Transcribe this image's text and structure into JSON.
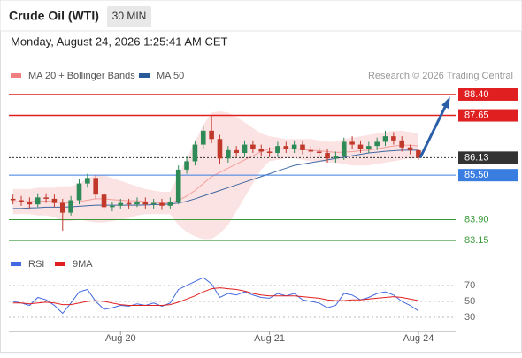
{
  "header": {
    "title": "Crude Oil (WTI)",
    "interval": "30 MIN",
    "timestamp": "Monday, August 24, 2026 1:25:41 AM CET"
  },
  "chart_data": [
    {
      "type": "candlestick",
      "watermark": "Research © 2026 Trading Central",
      "ylim": [
        82.74,
        88.78
      ],
      "candle_colors": {
        "up": "#2e8b57",
        "down": "#c0392b"
      },
      "open": [
        84.65,
        84.6,
        84.55,
        84.45,
        84.7,
        84.65,
        84.5,
        84.15,
        84.6,
        85.2,
        85.4,
        84.8,
        84.35,
        84.4,
        84.5,
        84.45,
        84.55,
        84.45,
        84.5,
        84.4,
        84.55,
        85.7,
        86.0,
        86.6,
        87.1,
        86.8,
        86.1,
        86.4,
        86.3,
        86.6,
        86.45,
        86.35,
        86.3,
        86.55,
        86.45,
        86.6,
        86.4,
        86.35,
        86.3,
        86.1,
        86.2,
        86.7,
        86.6,
        86.45,
        86.55,
        86.7,
        86.9,
        86.75,
        86.5,
        86.4
      ],
      "high": [
        84.8,
        84.75,
        84.7,
        84.85,
        84.85,
        84.8,
        84.65,
        84.75,
        85.35,
        85.55,
        85.5,
        84.95,
        84.55,
        84.65,
        84.65,
        84.7,
        84.7,
        84.65,
        84.65,
        84.7,
        85.85,
        86.2,
        86.75,
        87.25,
        87.65,
        86.95,
        86.55,
        86.55,
        86.75,
        86.75,
        86.6,
        86.5,
        86.7,
        86.7,
        86.75,
        86.75,
        86.55,
        86.5,
        86.45,
        86.35,
        86.85,
        86.9,
        86.75,
        86.7,
        86.85,
        87.1,
        87.05,
        86.9,
        86.6,
        86.45
      ],
      "low": [
        84.45,
        84.4,
        84.3,
        84.35,
        84.5,
        84.35,
        83.5,
        84.05,
        84.45,
        85.05,
        84.65,
        84.2,
        84.2,
        84.3,
        84.3,
        84.35,
        84.3,
        84.3,
        84.25,
        84.3,
        84.45,
        85.55,
        85.85,
        86.45,
        86.65,
        85.9,
        85.95,
        86.15,
        86.15,
        86.3,
        86.2,
        86.15,
        86.15,
        86.3,
        86.3,
        86.25,
        86.2,
        86.15,
        85.95,
        85.95,
        86.05,
        86.45,
        86.3,
        86.3,
        86.4,
        86.55,
        86.6,
        86.35,
        86.25,
        86.05
      ],
      "close": [
        84.6,
        84.55,
        84.45,
        84.7,
        84.65,
        84.5,
        84.15,
        84.6,
        85.2,
        85.4,
        84.8,
        84.35,
        84.4,
        84.5,
        84.45,
        84.55,
        84.45,
        84.5,
        84.4,
        84.55,
        85.7,
        86.0,
        86.6,
        87.1,
        86.8,
        86.1,
        86.4,
        86.3,
        86.6,
        86.45,
        86.35,
        86.3,
        86.55,
        86.45,
        86.6,
        86.4,
        86.35,
        86.3,
        86.1,
        86.2,
        86.7,
        86.6,
        86.45,
        86.55,
        86.7,
        86.9,
        86.75,
        86.5,
        86.4,
        86.13
      ],
      "series": [
        {
          "name": "MA 20 + Bollinger Bands",
          "color": "#f08080",
          "values": [
            84.55,
            84.55,
            84.55,
            84.56,
            84.57,
            84.55,
            84.5,
            84.5,
            84.55,
            84.6,
            84.65,
            84.65,
            84.62,
            84.6,
            84.58,
            84.58,
            84.55,
            84.52,
            84.5,
            84.5,
            84.6,
            84.75,
            84.95,
            85.2,
            85.45,
            85.6,
            85.75,
            85.9,
            86.05,
            86.2,
            86.35,
            86.45,
            86.45,
            86.45,
            86.45,
            86.42,
            86.4,
            86.38,
            86.35,
            86.32,
            86.33,
            86.35,
            86.38,
            86.4,
            86.45,
            86.5,
            86.55,
            86.58,
            86.58,
            86.55
          ],
          "upper": [
            85.0,
            85.0,
            85.0,
            85.05,
            85.05,
            85.05,
            85.1,
            85.1,
            85.2,
            85.4,
            85.5,
            85.5,
            85.4,
            85.3,
            85.2,
            85.1,
            85.0,
            84.95,
            84.9,
            84.9,
            85.5,
            86.1,
            86.7,
            87.3,
            87.75,
            87.8,
            87.75,
            87.6,
            87.4,
            87.2,
            87.0,
            86.9,
            86.85,
            86.8,
            86.8,
            86.8,
            86.8,
            86.75,
            86.7,
            86.7,
            86.8,
            86.85,
            86.9,
            86.95,
            87.0,
            87.05,
            87.1,
            87.1,
            87.05,
            87.0
          ],
          "lower": [
            84.1,
            84.1,
            84.1,
            84.05,
            84.05,
            84.0,
            83.85,
            83.85,
            83.9,
            83.85,
            83.8,
            83.8,
            83.85,
            83.9,
            83.95,
            84.05,
            84.1,
            84.1,
            84.1,
            84.1,
            83.7,
            83.45,
            83.3,
            83.2,
            83.2,
            83.4,
            83.7,
            84.2,
            84.7,
            85.2,
            85.7,
            86.0,
            86.05,
            86.1,
            86.1,
            86.05,
            86.0,
            86.0,
            85.95,
            85.95,
            85.9,
            85.85,
            85.85,
            85.85,
            85.9,
            85.95,
            86.0,
            86.05,
            86.1,
            86.1
          ]
        },
        {
          "name": "MA 50",
          "color": "#2a5a9a",
          "values": [
            84.3,
            84.3,
            84.32,
            84.33,
            84.35,
            84.35,
            84.35,
            84.36,
            84.38,
            84.4,
            84.42,
            84.42,
            84.42,
            84.42,
            84.42,
            84.42,
            84.43,
            84.44,
            84.45,
            84.46,
            84.5,
            84.56,
            84.65,
            84.75,
            84.85,
            84.95,
            85.05,
            85.15,
            85.25,
            85.35,
            85.45,
            85.55,
            85.65,
            85.75,
            85.85,
            85.9,
            85.95,
            86.0,
            86.05,
            86.1,
            86.15,
            86.2,
            86.25,
            86.3,
            86.33,
            86.36,
            86.38,
            86.4,
            86.4,
            86.4
          ]
        }
      ],
      "levels": [
        {
          "value": 88.4,
          "label": "88.40"
        },
        {
          "value": 87.65,
          "label": "87.65"
        },
        {
          "value": 86.13,
          "label": "86.13"
        },
        {
          "value": 85.5,
          "label": "85.50"
        },
        {
          "value": 83.9,
          "label": "83.90"
        },
        {
          "value": 83.15,
          "label": "83.15"
        }
      ],
      "level_colors": [
        "#e02020",
        "#e02020",
        "#333333",
        "#3a7de0",
        "#3a9a3a",
        "#3a9a3a"
      ],
      "level_dotted": [
        false,
        false,
        true,
        false,
        false,
        false
      ],
      "level_boxed": [
        true,
        true,
        true,
        true,
        false,
        false
      ]
    },
    {
      "type": "line",
      "ylim": [
        15.6,
        84.4
      ],
      "yticks": [
        30,
        50,
        70
      ],
      "categories": [
        null,
        null,
        null,
        null,
        null,
        null,
        null,
        null,
        null,
        null,
        null,
        null,
        null,
        "Aug 20",
        null,
        null,
        null,
        null,
        null,
        null,
        null,
        null,
        null,
        null,
        null,
        null,
        null,
        null,
        null,
        null,
        null,
        "Aug 21",
        null,
        null,
        null,
        null,
        null,
        null,
        null,
        null,
        null,
        null,
        null,
        null,
        null,
        null,
        null,
        null,
        null,
        "Aug 24"
      ],
      "series": [
        {
          "name": "RSI",
          "color": "#4169e1",
          "values": [
            50,
            48,
            45,
            55,
            52,
            45,
            35,
            48,
            62,
            65,
            50,
            40,
            42,
            45,
            44,
            47,
            45,
            48,
            44,
            48,
            65,
            70,
            75,
            80,
            72,
            55,
            60,
            58,
            62,
            58,
            55,
            54,
            60,
            57,
            60,
            52,
            50,
            48,
            42,
            45,
            60,
            58,
            52,
            55,
            60,
            62,
            58,
            50,
            45,
            38
          ]
        },
        {
          "name": "9MA",
          "color": "#e02020",
          "values": [
            48,
            48,
            47,
            48,
            49,
            48,
            46,
            46,
            48,
            50,
            51,
            50,
            48,
            46,
            45,
            45,
            45,
            45,
            45,
            46,
            49,
            53,
            57,
            62,
            66,
            67,
            66,
            65,
            63,
            60,
            58,
            57,
            57,
            57,
            57,
            56,
            55,
            54,
            52,
            51,
            51,
            52,
            52,
            53,
            54,
            55,
            56,
            55,
            53,
            51
          ]
        }
      ]
    }
  ]
}
